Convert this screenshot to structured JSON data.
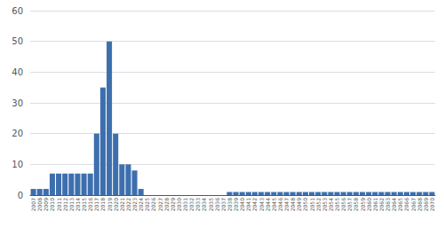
{
  "chart_data": {
    "type": "bar",
    "categories": [
      "2007",
      "2008",
      "2009",
      "2010",
      "2011",
      "2012",
      "2013",
      "2014",
      "2015",
      "2016",
      "2017",
      "2018",
      "2019",
      "2020",
      "2021",
      "2022",
      "2023",
      "2024",
      "2025",
      "2026",
      "2027",
      "2028",
      "2029",
      "2030",
      "2031",
      "2032",
      "2033",
      "2034",
      "2035",
      "2036",
      "2037",
      "2038",
      "2039",
      "2040",
      "2041",
      "2042",
      "2043",
      "2044",
      "2045",
      "2046",
      "2047",
      "2048",
      "2049",
      "2050",
      "2051",
      "2052",
      "2053",
      "2054",
      "2055",
      "2056",
      "2057",
      "2058",
      "2059",
      "2060",
      "2061",
      "2062",
      "2063",
      "2064",
      "2065",
      "2066",
      "2067",
      "2068",
      "2069",
      "2070"
    ],
    "values": [
      2,
      2,
      2,
      7,
      7,
      7,
      7,
      7,
      7,
      7,
      20,
      35,
      50,
      20,
      10,
      10,
      8,
      2,
      0,
      0,
      0,
      0,
      0,
      0,
      0,
      0,
      0,
      0,
      0,
      0,
      0,
      1,
      1,
      1,
      1,
      1,
      1,
      1,
      1,
      1,
      1,
      1,
      1,
      1,
      1,
      1,
      1,
      1,
      1,
      1,
      1,
      1,
      1,
      1,
      1,
      1,
      1,
      1,
      1,
      1,
      1,
      1,
      1,
      1
    ],
    "color": "#3d6fae",
    "ylim": [
      0,
      60
    ],
    "yticks": [
      0,
      10,
      20,
      30,
      40,
      50,
      60
    ],
    "grid": true
  }
}
